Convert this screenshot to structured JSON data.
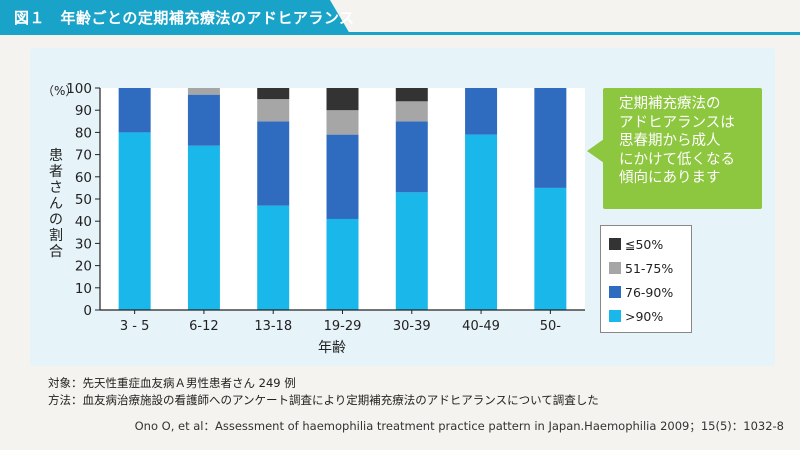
{
  "header": {
    "title": "図１　年齢ごとの定期補充療法のアドヒアランス"
  },
  "callout": {
    "lines": [
      "定期補充療法の",
      "アドヒアランスは",
      "思春期から成人",
      "にかけて低くなる",
      "傾向にあります"
    ]
  },
  "notes": {
    "subject": "対象：先天性重症血友病Ａ男性患者さん 249 例",
    "method": "方法：血友病治療施設の看護師へのアンケート調査により定期補充療法のアドヒアランスについて調査した",
    "citation": "Ono O, et al：Assessment of haemophilia treatment practice pattern in Japan.Haemophilia 2009；15(5)：1032-8"
  },
  "chart_data": {
    "type": "bar",
    "stacked": true,
    "unit_label": "（%）",
    "ylabel": "患者さんの割合",
    "xlabel": "年齢",
    "ylim": [
      0,
      100
    ],
    "yticks": [
      0,
      10,
      20,
      30,
      40,
      50,
      60,
      70,
      80,
      90,
      100
    ],
    "categories": [
      "3 - 5",
      "6-12",
      "13-18",
      "19-29",
      "30-39",
      "40-49",
      "50-"
    ],
    "series": [
      {
        "name": ">90%",
        "color": "#1ab7ea",
        "values": [
          80,
          74,
          47,
          41,
          53,
          79,
          55
        ]
      },
      {
        "name": "76-90%",
        "color": "#2f6cc0",
        "values": [
          20,
          23,
          38,
          38,
          32,
          21,
          45
        ]
      },
      {
        "name": "51-75%",
        "color": "#a6a6a6",
        "values": [
          0,
          3,
          10,
          11,
          9,
          0,
          0
        ]
      },
      {
        "name": "≦50%",
        "color": "#333333",
        "values": [
          0,
          0,
          5,
          10,
          6,
          0,
          0
        ]
      }
    ],
    "legend_order": [
      "≦50%",
      "51-75%",
      "76-90%",
      ">90%"
    ],
    "legend_position": "right",
    "grid": false
  }
}
